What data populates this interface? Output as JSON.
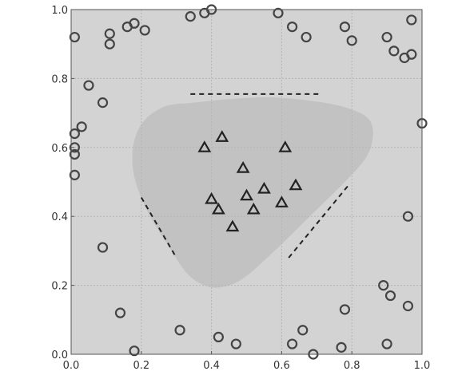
{
  "chart_data": {
    "type": "scatter",
    "xlim": [
      0,
      1
    ],
    "ylim": [
      0,
      1
    ],
    "grid": true,
    "xticks": [
      "0.0",
      "0.2",
      "0.4",
      "0.6",
      "0.8",
      "1.0"
    ],
    "yticks": [
      "0.0",
      "0.2",
      "0.4",
      "0.6",
      "0.8",
      "1.0"
    ],
    "colors": {
      "plot_background": "#d3d3d3",
      "region_fill": "#c2c2c2",
      "grid": "#b5b5b5",
      "marker_stroke": "#444444",
      "guide_line": "#222222"
    },
    "series": [
      {
        "marker": "circle",
        "points": [
          [
            0.01,
            0.92
          ],
          [
            0.11,
            0.93
          ],
          [
            0.11,
            0.9
          ],
          [
            0.16,
            0.95
          ],
          [
            0.18,
            0.96
          ],
          [
            0.21,
            0.94
          ],
          [
            0.34,
            0.98
          ],
          [
            0.38,
            0.99
          ],
          [
            0.4,
            1.0
          ],
          [
            0.59,
            0.99
          ],
          [
            0.63,
            0.95
          ],
          [
            0.67,
            0.92
          ],
          [
            0.78,
            0.95
          ],
          [
            0.8,
            0.91
          ],
          [
            0.9,
            0.92
          ],
          [
            0.92,
            0.88
          ],
          [
            0.95,
            0.86
          ],
          [
            0.97,
            0.87
          ],
          [
            0.97,
            0.97
          ],
          [
            0.05,
            0.78
          ],
          [
            0.09,
            0.73
          ],
          [
            0.03,
            0.66
          ],
          [
            0.01,
            0.64
          ],
          [
            0.01,
            0.6
          ],
          [
            0.01,
            0.58
          ],
          [
            0.01,
            0.52
          ],
          [
            1.0,
            0.67
          ],
          [
            0.96,
            0.4
          ],
          [
            0.09,
            0.31
          ],
          [
            0.14,
            0.12
          ],
          [
            0.18,
            0.01
          ],
          [
            0.31,
            0.07
          ],
          [
            0.42,
            0.05
          ],
          [
            0.47,
            0.03
          ],
          [
            0.63,
            0.03
          ],
          [
            0.66,
            0.07
          ],
          [
            0.69,
            0.0
          ],
          [
            0.77,
            0.02
          ],
          [
            0.78,
            0.13
          ],
          [
            0.89,
            0.2
          ],
          [
            0.91,
            0.17
          ],
          [
            0.9,
            0.03
          ],
          [
            0.96,
            0.14
          ]
        ]
      },
      {
        "marker": "triangle",
        "points": [
          [
            0.43,
            0.63
          ],
          [
            0.38,
            0.6
          ],
          [
            0.61,
            0.6
          ],
          [
            0.49,
            0.54
          ],
          [
            0.64,
            0.49
          ],
          [
            0.55,
            0.48
          ],
          [
            0.5,
            0.46
          ],
          [
            0.4,
            0.45
          ],
          [
            0.6,
            0.44
          ],
          [
            0.42,
            0.42
          ],
          [
            0.52,
            0.42
          ],
          [
            0.46,
            0.37
          ]
        ]
      }
    ],
    "region": [
      [
        0.35,
        0.73
      ],
      [
        0.45,
        0.74
      ],
      [
        0.58,
        0.745
      ],
      [
        0.72,
        0.73
      ],
      [
        0.8,
        0.71
      ],
      [
        0.85,
        0.68
      ],
      [
        0.86,
        0.63
      ],
      [
        0.84,
        0.57
      ],
      [
        0.78,
        0.5
      ],
      [
        0.68,
        0.4
      ],
      [
        0.58,
        0.3
      ],
      [
        0.49,
        0.22
      ],
      [
        0.43,
        0.195
      ],
      [
        0.38,
        0.2
      ],
      [
        0.33,
        0.235
      ],
      [
        0.28,
        0.31
      ],
      [
        0.225,
        0.4
      ],
      [
        0.19,
        0.48
      ],
      [
        0.175,
        0.55
      ],
      [
        0.18,
        0.62
      ],
      [
        0.21,
        0.68
      ],
      [
        0.27,
        0.72
      ]
    ],
    "guide_lines": [
      [
        [
          0.34,
          0.755
        ],
        [
          0.71,
          0.755
        ]
      ],
      [
        [
          0.2,
          0.455
        ],
        [
          0.3,
          0.28
        ]
      ],
      [
        [
          0.62,
          0.28
        ],
        [
          0.79,
          0.49
        ]
      ]
    ]
  }
}
